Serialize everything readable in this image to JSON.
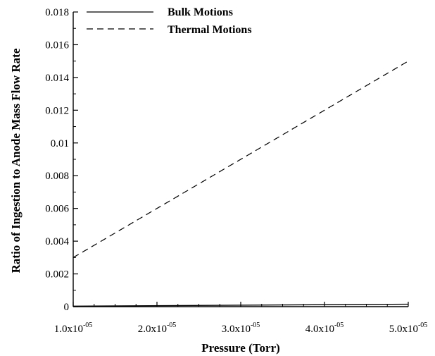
{
  "chart_data": {
    "type": "line",
    "title": "",
    "xlabel": "Pressure (Torr)",
    "ylabel": "Ratio of Ingestion to Anode Mass Flow Rate",
    "xlim": [
      1e-05,
      5e-05
    ],
    "ylim": [
      0,
      0.018
    ],
    "x_ticks": [
      {
        "value": 1e-05,
        "mantissa": "1.0x10",
        "exponent": "-05"
      },
      {
        "value": 2e-05,
        "mantissa": "2.0x10",
        "exponent": "-05"
      },
      {
        "value": 3e-05,
        "mantissa": "3.0x10",
        "exponent": "-05"
      },
      {
        "value": 4e-05,
        "mantissa": "4.0x10",
        "exponent": "-05"
      },
      {
        "value": 5e-05,
        "mantissa": "5.0x10",
        "exponent": "-05"
      }
    ],
    "y_ticks": [
      {
        "value": 0,
        "label": "0"
      },
      {
        "value": 0.002,
        "label": "0.002"
      },
      {
        "value": 0.004,
        "label": "0.004"
      },
      {
        "value": 0.006,
        "label": "0.006"
      },
      {
        "value": 0.008,
        "label": "0.008"
      },
      {
        "value": 0.01,
        "label": "0.01"
      },
      {
        "value": 0.012,
        "label": "0.012"
      },
      {
        "value": 0.014,
        "label": "0.014"
      },
      {
        "value": 0.016,
        "label": "0.016"
      },
      {
        "value": 0.018,
        "label": "0.018"
      }
    ],
    "grid": false,
    "legend_position": "top-left",
    "series": [
      {
        "name": "Bulk Motions",
        "style": "solid",
        "x": [
          1e-05,
          5e-05
        ],
        "y": [
          3e-05,
          0.00015
        ]
      },
      {
        "name": "Thermal Motions",
        "style": "dashed",
        "x": [
          1e-05,
          5e-05
        ],
        "y": [
          0.003,
          0.015
        ]
      }
    ]
  }
}
